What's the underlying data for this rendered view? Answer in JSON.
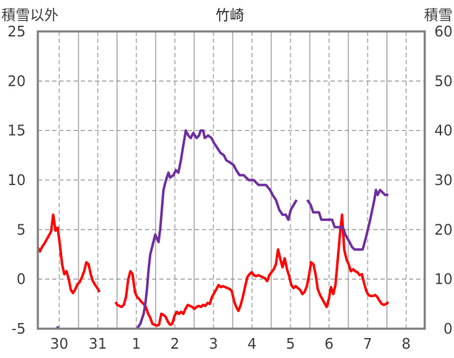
{
  "chart_data": {
    "type": "line",
    "title": "竹崎",
    "ylabel_left": "積雪以外",
    "ylabel_right": "積雪",
    "ylim_left": [
      -5,
      25
    ],
    "ylim_right": [
      0,
      60
    ],
    "yticks_left": [
      "25",
      "20",
      "15",
      "10",
      "5",
      "0",
      "-5"
    ],
    "yticks_right": [
      "60",
      "50",
      "40",
      "30",
      "20",
      "10",
      "0"
    ],
    "x_day_labels": [
      "30",
      "31",
      "1",
      "2",
      "3",
      "4",
      "5",
      "6",
      "7",
      "8"
    ],
    "x_range_hours": [
      0,
      234
    ],
    "grid": true,
    "series": [
      {
        "axis": "left",
        "color": "#ff0000",
        "points": [
          [
            0.0,
            3.2
          ],
          [
            1.3,
            2.8
          ],
          [
            2.7,
            3.3
          ],
          [
            4.0,
            3.6
          ],
          [
            5.3,
            4.0
          ],
          [
            6.7,
            4.4
          ],
          [
            8.0,
            4.8
          ],
          [
            9.3,
            6.5
          ],
          [
            10.7,
            4.9
          ],
          [
            12.0,
            5.2
          ],
          [
            13.3,
            3.5
          ],
          [
            14.7,
            1.5
          ],
          [
            16.0,
            0.5
          ],
          [
            17.3,
            0.8
          ],
          [
            18.7,
            0.0
          ],
          [
            20.0,
            -1.1
          ],
          [
            21.3,
            -1.4
          ],
          [
            22.7,
            -1.0
          ],
          [
            24.0,
            -0.5
          ],
          [
            25.3,
            -0.3
          ],
          [
            26.7,
            0.2
          ],
          [
            28.0,
            0.8
          ],
          [
            29.3,
            1.7
          ],
          [
            30.7,
            1.5
          ],
          [
            32.0,
            0.5
          ],
          [
            33.3,
            -0.2
          ],
          [
            34.7,
            -0.6
          ],
          [
            36.0,
            -0.9
          ],
          [
            37.3,
            -1.3
          ],
          [
            47.0,
            -2.3
          ],
          [
            48.0,
            -2.6
          ],
          [
            49.3,
            -2.7
          ],
          [
            50.7,
            -2.8
          ],
          [
            52.0,
            -2.6
          ],
          [
            53.3,
            -1.8
          ],
          [
            54.7,
            0.0
          ],
          [
            56.0,
            0.8
          ],
          [
            57.3,
            0.5
          ],
          [
            58.7,
            -1.3
          ],
          [
            60.0,
            -1.8
          ],
          [
            61.3,
            -2.0
          ],
          [
            62.7,
            -2.3
          ],
          [
            64.0,
            -2.5
          ],
          [
            65.3,
            -2.8
          ],
          [
            66.7,
            -3.5
          ],
          [
            68.0,
            -3.9
          ],
          [
            69.3,
            -4.5
          ],
          [
            70.7,
            -4.6
          ],
          [
            72.0,
            -4.7
          ],
          [
            73.3,
            -4.6
          ],
          [
            74.7,
            -3.5
          ],
          [
            76.0,
            -3.6
          ],
          [
            77.3,
            -3.8
          ],
          [
            78.7,
            -4.3
          ],
          [
            80.0,
            -4.6
          ],
          [
            81.3,
            -4.5
          ],
          [
            82.7,
            -3.7
          ],
          [
            84.0,
            -3.3
          ],
          [
            85.3,
            -3.5
          ],
          [
            86.7,
            -3.3
          ],
          [
            88.0,
            -3.5
          ],
          [
            89.3,
            -3.0
          ],
          [
            90.7,
            -2.6
          ],
          [
            92.0,
            -2.7
          ],
          [
            93.3,
            -2.8
          ],
          [
            94.7,
            -3.0
          ],
          [
            96.0,
            -2.8
          ],
          [
            97.3,
            -2.7
          ],
          [
            98.7,
            -2.8
          ],
          [
            100.0,
            -2.6
          ],
          [
            101.3,
            -2.7
          ],
          [
            102.7,
            -2.4
          ],
          [
            104.0,
            -2.5
          ],
          [
            105.3,
            -1.8
          ],
          [
            106.7,
            -1.4
          ],
          [
            108.0,
            -1.0
          ],
          [
            109.3,
            -0.6
          ],
          [
            110.7,
            -0.8
          ],
          [
            112.0,
            -0.7
          ],
          [
            113.3,
            -0.8
          ],
          [
            114.7,
            -0.9
          ],
          [
            116.0,
            -1.0
          ],
          [
            117.3,
            -1.2
          ],
          [
            118.7,
            -2.2
          ],
          [
            120.0,
            -2.8
          ],
          [
            121.3,
            -3.2
          ],
          [
            122.7,
            -2.6
          ],
          [
            124.0,
            -1.8
          ],
          [
            125.3,
            -0.8
          ],
          [
            126.7,
            0.2
          ],
          [
            128.0,
            0.5
          ],
          [
            129.3,
            0.7
          ],
          [
            130.7,
            0.4
          ],
          [
            132.0,
            0.3
          ],
          [
            133.3,
            0.4
          ],
          [
            134.7,
            0.3
          ],
          [
            136.0,
            0.2
          ],
          [
            137.3,
            0.1
          ],
          [
            138.7,
            -0.2
          ],
          [
            140.0,
            0.4
          ],
          [
            141.3,
            0.7
          ],
          [
            142.7,
            1.0
          ],
          [
            144.0,
            1.5
          ],
          [
            145.3,
            3.0
          ],
          [
            146.7,
            2.0
          ],
          [
            148.0,
            1.2
          ],
          [
            149.3,
            2.1
          ],
          [
            150.7,
            1.0
          ],
          [
            152.0,
            0.3
          ],
          [
            153.3,
            -0.6
          ],
          [
            154.7,
            -0.9
          ],
          [
            156.0,
            -0.7
          ],
          [
            157.3,
            -0.9
          ],
          [
            158.7,
            -1.1
          ],
          [
            160.0,
            -1.5
          ],
          [
            161.3,
            -1.3
          ],
          [
            162.7,
            -0.7
          ],
          [
            164.0,
            0.4
          ],
          [
            165.3,
            1.7
          ],
          [
            166.7,
            1.5
          ],
          [
            168.0,
            0.5
          ],
          [
            169.3,
            -1.0
          ],
          [
            170.7,
            -1.6
          ],
          [
            172.0,
            -2.0
          ],
          [
            173.3,
            -2.4
          ],
          [
            174.7,
            -2.8
          ],
          [
            176.0,
            -2.0
          ],
          [
            177.3,
            -0.8
          ],
          [
            178.7,
            -1.5
          ],
          [
            180.0,
            -0.6
          ],
          [
            181.3,
            1.8
          ],
          [
            182.7,
            4.5
          ],
          [
            184.0,
            6.5
          ],
          [
            185.3,
            3.0
          ],
          [
            186.7,
            2.0
          ],
          [
            188.0,
            1.5
          ],
          [
            189.3,
            0.8
          ],
          [
            190.7,
            1.0
          ],
          [
            192.0,
            0.8
          ],
          [
            193.3,
            0.7
          ],
          [
            194.7,
            0.4
          ],
          [
            196.0,
            0.5
          ],
          [
            197.3,
            -0.4
          ],
          [
            198.7,
            -1.2
          ],
          [
            200.0,
            -1.6
          ],
          [
            201.3,
            -1.7
          ],
          [
            202.7,
            -1.7
          ],
          [
            204.0,
            -1.6
          ],
          [
            205.3,
            -1.8
          ],
          [
            206.7,
            -2.2
          ],
          [
            208.0,
            -2.5
          ],
          [
            209.3,
            -2.6
          ],
          [
            210.7,
            -2.5
          ],
          [
            212.0,
            -2.3
          ]
        ]
      },
      {
        "axis": "right",
        "color": "#7030a0",
        "points": [
          [
            0.0,
            0.5
          ],
          [
            12.0,
            0.5
          ],
          [
            12.0,
            0.0
          ],
          [
            60.0,
            0.0
          ],
          [
            62.0,
            1.0
          ],
          [
            64.0,
            3.0
          ],
          [
            65.0,
            5.0
          ],
          [
            66.0,
            8.0
          ],
          [
            67.0,
            12.0
          ],
          [
            68.0,
            15.0
          ],
          [
            69.5,
            17.0
          ],
          [
            71.0,
            19.0
          ],
          [
            73.0,
            17.5
          ],
          [
            74.0,
            20.0
          ],
          [
            75.0,
            24.0
          ],
          [
            76.0,
            28.0
          ],
          [
            77.5,
            30.0
          ],
          [
            79.0,
            31.5
          ],
          [
            80.0,
            30.5
          ],
          [
            82.0,
            31.0
          ],
          [
            83.5,
            32.0
          ],
          [
            85.0,
            31.5
          ],
          [
            86.5,
            34.0
          ],
          [
            88.0,
            37.0
          ],
          [
            89.5,
            40.0
          ],
          [
            91.0,
            39.0
          ],
          [
            92.5,
            38.5
          ],
          [
            94.0,
            39.5
          ],
          [
            96.0,
            38.5
          ],
          [
            97.5,
            39.0
          ],
          [
            98.5,
            40.0
          ],
          [
            100.0,
            40.0
          ],
          [
            101.0,
            38.5
          ],
          [
            103.0,
            39.0
          ],
          [
            105.0,
            38.5
          ],
          [
            106.5,
            37.5
          ],
          [
            108.5,
            36.5
          ],
          [
            110.5,
            35.5
          ],
          [
            112.5,
            35.0
          ],
          [
            114.0,
            34.0
          ],
          [
            116.5,
            33.5
          ],
          [
            118.5,
            33.0
          ],
          [
            120.0,
            32.0
          ],
          [
            122.0,
            31.0
          ],
          [
            124.5,
            31.0
          ],
          [
            127.5,
            30.0
          ],
          [
            130.5,
            30.0
          ],
          [
            133.5,
            29.0
          ],
          [
            138.0,
            29.0
          ],
          [
            140.5,
            28.0
          ],
          [
            142.0,
            27.0
          ],
          [
            144.0,
            26.0
          ],
          [
            146.0,
            24.0
          ],
          [
            148.0,
            23.0
          ],
          [
            150.0,
            23.0
          ],
          [
            151.5,
            22.0
          ],
          [
            153.0,
            24.0
          ],
          [
            156.5,
            26.0
          ],
          [
            163.0,
            26.0
          ],
          [
            165.0,
            25.0
          ],
          [
            166.5,
            23.5
          ],
          [
            170.0,
            23.5
          ],
          [
            171.5,
            22.0
          ],
          [
            175.0,
            22.0
          ],
          [
            178.0,
            22.0
          ],
          [
            179.5,
            20.5
          ],
          [
            184.5,
            20.5
          ],
          [
            186.0,
            19.0
          ],
          [
            188.5,
            17.5
          ],
          [
            190.0,
            16.5
          ],
          [
            191.5,
            16.0
          ],
          [
            196.5,
            16.0
          ],
          [
            198.5,
            18.5
          ],
          [
            201.0,
            22.0
          ],
          [
            203.5,
            26.0
          ],
          [
            204.5,
            28.0
          ],
          [
            205.5,
            27.0
          ],
          [
            207.0,
            28.0
          ],
          [
            208.5,
            27.5
          ],
          [
            210.0,
            27.0
          ],
          [
            212.0,
            27.0
          ]
        ]
      }
    ]
  }
}
